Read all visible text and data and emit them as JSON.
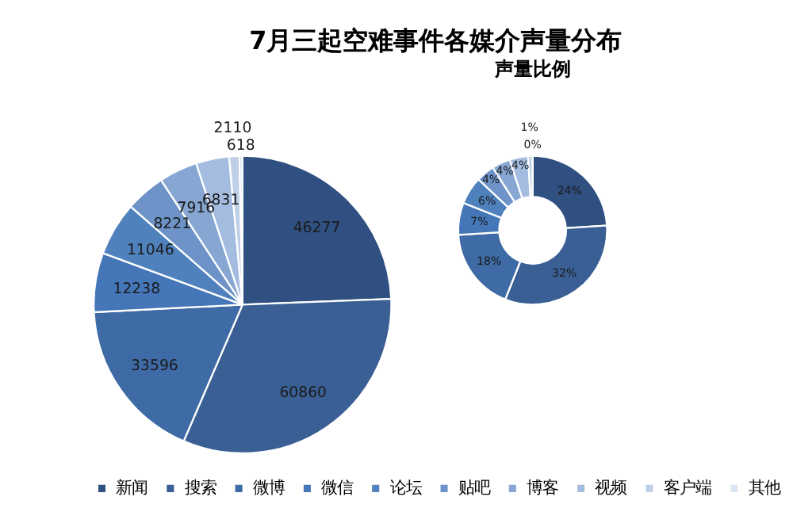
{
  "chart_data": [
    {
      "type": "pie",
      "title": "7月三起空难事件各媒介声量分布",
      "categories": [
        "新闻",
        "搜索",
        "微博",
        "微信",
        "论坛",
        "贴吧",
        "博客",
        "视频",
        "客户端",
        "其他"
      ],
      "values": [
        46277,
        60860,
        33596,
        12238,
        11046,
        8221,
        7916,
        6831,
        2110,
        618
      ],
      "colors": [
        "#2f5081",
        "#3a5f94",
        "#3e6aa5",
        "#4577b8",
        "#4f81bd",
        "#6d93c8",
        "#87a6d2",
        "#a4bcdf",
        "#bfcfe8",
        "#dbe4f2"
      ],
      "data_labels": true,
      "legend": "bottom"
    },
    {
      "type": "donut",
      "title": "声量比例",
      "values": [
        24,
        32,
        18,
        7,
        6,
        4,
        4,
        4,
        1,
        0
      ],
      "colors": [
        "#2f5081",
        "#3a5f94",
        "#3e6aa5",
        "#4577b8",
        "#4f81bd",
        "#6d93c8",
        "#87a6d2",
        "#a4bcdf",
        "#bfcfe8",
        "#dbe4f2"
      ],
      "value_labels": [
        "24%",
        "32%",
        "18%",
        "7%",
        "6%",
        "4%",
        "4%",
        "4%",
        "1%",
        "0%"
      ]
    }
  ]
}
